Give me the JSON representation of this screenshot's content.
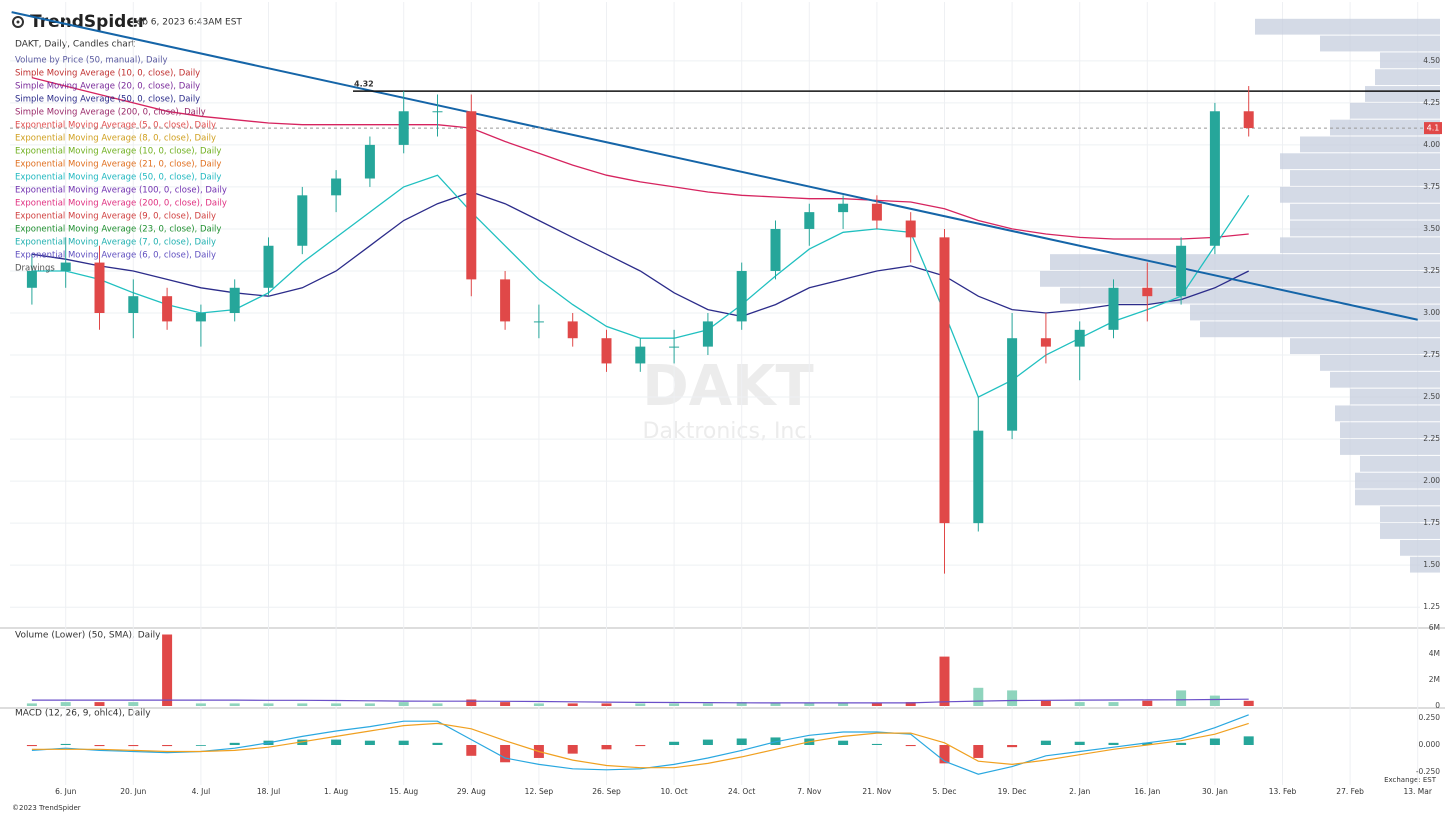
{
  "header": {
    "brand": "TrendSpider",
    "timestamp": "Feb 6, 2023 6:43AM EST",
    "copyright": "©2023 TrendSpider",
    "exchange": "Exchange: EST",
    "watermark": "DAKT",
    "watermark_sub": "Daktronics, Inc."
  },
  "chart_data": [
    {
      "type": "candlestick",
      "title": "DAKT, Daily, Candles chart",
      "categories": [
        null,
        "6. Jun",
        null,
        "20. Jun",
        null,
        "4. Jul",
        null,
        "18. Jul",
        null,
        "1. Aug",
        null,
        "15. Aug",
        null,
        "29. Aug",
        null,
        "12. Sep",
        null,
        "26. Sep",
        null,
        "10. Oct",
        null,
        "24. Oct",
        null,
        "7. Nov",
        null,
        "21. Nov",
        null,
        "5. Dec",
        null,
        "19. Dec",
        null,
        "2. Jan",
        null,
        "16. Jan",
        null,
        "30. Jan",
        null,
        "13. Feb",
        null,
        "27. Feb",
        null,
        "13. Mar"
      ],
      "open": [
        3.15,
        3.25,
        3.3,
        3.0,
        3.1,
        2.95,
        3.0,
        3.15,
        3.4,
        3.7,
        3.8,
        4.0,
        4.2,
        4.2,
        3.2,
        2.95,
        2.95,
        2.85,
        2.7,
        2.8,
        2.8,
        2.95,
        3.25,
        3.5,
        3.6,
        3.65,
        3.55,
        3.45,
        1.75,
        2.3,
        2.85,
        2.8,
        2.9,
        3.15,
        3.1,
        3.4,
        4.2,
        null,
        null,
        null,
        null,
        null
      ],
      "high": [
        3.35,
        3.45,
        3.4,
        3.2,
        3.15,
        3.05,
        3.2,
        3.45,
        3.75,
        3.85,
        4.05,
        4.32,
        4.3,
        4.3,
        3.25,
        3.05,
        3.0,
        2.9,
        2.85,
        2.9,
        3.0,
        3.3,
        3.55,
        3.65,
        3.7,
        3.7,
        3.6,
        3.5,
        2.5,
        3.0,
        3.0,
        2.95,
        3.2,
        3.3,
        3.45,
        4.25,
        4.35,
        null,
        null,
        null,
        null,
        null
      ],
      "low": [
        3.05,
        3.15,
        2.9,
        2.85,
        2.9,
        2.8,
        2.95,
        3.1,
        3.35,
        3.6,
        3.75,
        3.95,
        4.05,
        3.1,
        2.9,
        2.85,
        2.8,
        2.65,
        2.65,
        2.7,
        2.75,
        2.9,
        3.2,
        3.4,
        3.5,
        3.5,
        3.3,
        1.45,
        1.7,
        2.25,
        2.7,
        2.6,
        2.85,
        2.95,
        3.05,
        3.35,
        4.05,
        null,
        null,
        null,
        null,
        null
      ],
      "close": [
        3.25,
        3.3,
        3.0,
        3.1,
        2.95,
        3.0,
        3.15,
        3.4,
        3.7,
        3.8,
        4.0,
        4.2,
        4.2,
        3.2,
        2.95,
        2.95,
        2.85,
        2.7,
        2.8,
        2.8,
        2.95,
        3.25,
        3.5,
        3.6,
        3.65,
        3.55,
        3.45,
        1.75,
        2.3,
        2.85,
        2.8,
        2.9,
        3.15,
        3.1,
        3.4,
        4.2,
        4.1,
        null,
        null,
        null,
        null,
        null
      ],
      "up_color": "#26a69a",
      "down_color": "#e04848",
      "lines": [
        {
          "color": "#d6245f",
          "values": [
            4.4,
            4.35,
            4.3,
            4.25,
            4.2,
            4.17,
            4.15,
            4.13,
            4.12,
            4.12,
            4.12,
            4.12,
            4.12,
            4.1,
            4.02,
            3.95,
            3.88,
            3.82,
            3.78,
            3.75,
            3.72,
            3.7,
            3.69,
            3.68,
            3.68,
            3.67,
            3.66,
            3.62,
            3.55,
            3.5,
            3.47,
            3.45,
            3.44,
            3.44,
            3.44,
            3.45,
            3.47,
            null,
            null,
            null,
            null,
            null
          ]
        },
        {
          "color": "#2c2c8a",
          "values": [
            3.35,
            3.32,
            3.28,
            3.25,
            3.2,
            3.15,
            3.12,
            3.1,
            3.15,
            3.25,
            3.4,
            3.55,
            3.65,
            3.72,
            3.65,
            3.55,
            3.45,
            3.35,
            3.25,
            3.12,
            3.02,
            2.98,
            3.05,
            3.15,
            3.2,
            3.25,
            3.28,
            3.22,
            3.1,
            3.02,
            3.0,
            3.02,
            3.05,
            3.05,
            3.08,
            3.15,
            3.25,
            null,
            null,
            null,
            null,
            null
          ]
        },
        {
          "color": "#20c0c0",
          "values": [
            3.25,
            3.25,
            3.2,
            3.12,
            3.05,
            3.0,
            3.02,
            3.12,
            3.3,
            3.45,
            3.6,
            3.75,
            3.82,
            3.6,
            3.4,
            3.2,
            3.05,
            2.92,
            2.85,
            2.85,
            2.9,
            3.05,
            3.22,
            3.38,
            3.48,
            3.5,
            3.48,
            3.0,
            2.5,
            2.6,
            2.75,
            2.85,
            2.95,
            3.02,
            3.1,
            3.4,
            3.7,
            null,
            null,
            null,
            null,
            null
          ]
        }
      ],
      "indicators": [
        {
          "name": "Volume by Price (50, manual), Daily",
          "color": "#5a5aa0"
        },
        {
          "name": "Simple Moving Average (10, 0, close), Daily",
          "color": "#c03030"
        },
        {
          "name": "Simple Moving Average (20, 0, close), Daily",
          "color": "#7a2a9a"
        },
        {
          "name": "Simple Moving Average (50, 0, close), Daily",
          "color": "#2c2c8a"
        },
        {
          "name": "Simple Moving Average (200, 0, close), Daily",
          "color": "#9a2a6a"
        },
        {
          "name": "Exponential Moving Average (5, 0, close), Daily",
          "color": "#e05050"
        },
        {
          "name": "Exponential Moving Average (8, 0, close), Daily",
          "color": "#d0a020"
        },
        {
          "name": "Exponential Moving Average (10, 0, close), Daily",
          "color": "#70b020"
        },
        {
          "name": "Exponential Moving Average (21, 0, close), Daily",
          "color": "#e07020"
        },
        {
          "name": "Exponential Moving Average (50, 0, close), Daily",
          "color": "#20b8c0"
        },
        {
          "name": "Exponential Moving Average (100, 0, close), Daily",
          "color": "#7030b0"
        },
        {
          "name": "Exponential Moving Average (200, 0, close), Daily",
          "color": "#e03080"
        },
        {
          "name": "Exponential Moving Average (9, 0, close), Daily",
          "color": "#d04040"
        },
        {
          "name": "Exponential Moving Average (23, 0, close), Daily",
          "color": "#209030"
        },
        {
          "name": "Exponential Moving Average (7, 0, close), Daily",
          "color": "#20b0b0"
        },
        {
          "name": "Exponential Moving Average (6, 0, close), Daily",
          "color": "#6050c0"
        },
        {
          "name": "Drawings",
          "color": "#555555"
        }
      ],
      "volume_profile": {
        "color": "#c5cedd",
        "prices": [
          1.5,
          1.6,
          1.7,
          1.8,
          1.9,
          2.0,
          2.1,
          2.2,
          2.3,
          2.4,
          2.5,
          2.6,
          2.7,
          2.8,
          2.9,
          3.0,
          3.1,
          3.2,
          3.3,
          3.4,
          3.5,
          3.6,
          3.7,
          3.8,
          3.9,
          4.0,
          4.1,
          4.2,
          4.3,
          4.4,
          4.5,
          4.6,
          4.7
        ],
        "volumes": [
          3,
          4,
          6,
          6,
          8.5,
          8.5,
          8,
          10,
          10,
          10.5,
          9,
          11,
          12,
          15,
          24,
          25,
          38,
          40,
          39,
          16,
          15,
          15,
          16,
          15,
          16,
          14,
          11,
          9,
          7.5,
          6.5,
          6,
          12,
          18.5
        ]
      },
      "trendline": {
        "color": "#1565a8",
        "x": [
          -0.6,
          41.0
        ],
        "y": [
          4.79,
          2.96
        ]
      },
      "level": {
        "value": 4.32,
        "label": "4.32",
        "start": 9.5
      },
      "last_price": {
        "value": 4.1,
        "label": "4.1",
        "color": "#e04848"
      },
      "ylim": [
        1.15,
        4.85
      ],
      "yticks": [
        {
          "value": 1.25,
          "label": "1.25"
        },
        {
          "value": 1.5,
          "label": "1.50"
        },
        {
          "value": 1.75,
          "label": "1.75"
        },
        {
          "value": 2,
          "label": "2.00"
        },
        {
          "value": 2.25,
          "label": "2.25"
        },
        {
          "value": 2.5,
          "label": "2.50"
        },
        {
          "value": 2.75,
          "label": "2.75"
        },
        {
          "value": 3,
          "label": "3.00"
        },
        {
          "value": 3.25,
          "label": "3.25"
        },
        {
          "value": 3.5,
          "label": "3.50"
        },
        {
          "value": 3.75,
          "label": "3.75"
        },
        {
          "value": 4,
          "label": "4.00"
        },
        {
          "value": 4.25,
          "label": "4.25"
        },
        {
          "value": 4.5,
          "label": "4.50"
        }
      ],
      "grid": true
    },
    {
      "type": "volume",
      "title": "Volume (Lower) (50, SMA), Daily",
      "values": [
        0.2,
        0.3,
        0.3,
        0.3,
        5.5,
        0.2,
        0.2,
        0.2,
        0.2,
        0.2,
        0.2,
        0.3,
        0.2,
        0.5,
        0.3,
        0.2,
        0.2,
        0.2,
        0.2,
        0.2,
        0.2,
        0.3,
        0.2,
        0.2,
        0.2,
        0.2,
        0.3,
        3.8,
        1.4,
        1.2,
        0.4,
        0.3,
        0.3,
        0.4,
        1.2,
        0.8,
        0.4,
        null,
        null,
        null,
        null,
        null
      ],
      "up_color": "#8fd4bd",
      "down_color": "#e04848",
      "sma": {
        "color": "#6a4fc8",
        "values": [
          0.45,
          0.45,
          0.45,
          0.45,
          0.45,
          0.45,
          0.45,
          0.44,
          0.44,
          0.42,
          0.4,
          0.38,
          0.37,
          0.37,
          0.36,
          0.35,
          0.32,
          0.3,
          0.28,
          0.27,
          0.26,
          0.25,
          0.24,
          0.24,
          0.24,
          0.24,
          0.24,
          0.32,
          0.38,
          0.42,
          0.44,
          0.45,
          0.46,
          0.47,
          0.48,
          0.5,
          0.52,
          null,
          null,
          null,
          null,
          null
        ]
      },
      "ylim": [
        0,
        6
      ],
      "yticks": [
        0,
        {
          "value": 2,
          "label": "2M"
        },
        {
          "value": 4,
          "label": "4M"
        },
        {
          "value": 6,
          "label": "6M"
        }
      ]
    },
    {
      "type": "macd",
      "title": "MACD (12, 26, 9, ohlc4), Daily",
      "histogram": {
        "pos_color": "#26a69a",
        "neg_color": "#e04848",
        "values": [
          -0.01,
          0.01,
          -0.01,
          -0.01,
          -0.01,
          0.0,
          0.02,
          0.04,
          0.05,
          0.05,
          0.04,
          0.04,
          0.02,
          -0.1,
          -0.16,
          -0.12,
          -0.08,
          -0.04,
          -0.01,
          0.03,
          0.05,
          0.06,
          0.07,
          0.06,
          0.04,
          0.01,
          -0.01,
          -0.17,
          -0.12,
          -0.02,
          0.04,
          0.03,
          0.02,
          0.02,
          0.02,
          0.06,
          0.08,
          null,
          null,
          null,
          null,
          null
        ]
      },
      "macd_line": {
        "color": "#2aa8e0",
        "values": [
          -0.05,
          -0.03,
          -0.05,
          -0.06,
          -0.07,
          -0.06,
          -0.03,
          0.02,
          0.08,
          0.13,
          0.17,
          0.22,
          0.22,
          0.05,
          -0.12,
          -0.18,
          -0.22,
          -0.23,
          -0.22,
          -0.18,
          -0.12,
          -0.05,
          0.03,
          0.09,
          0.12,
          0.12,
          0.1,
          -0.15,
          -0.27,
          -0.2,
          -0.1,
          -0.06,
          -0.02,
          0.02,
          0.06,
          0.16,
          0.28,
          null,
          null,
          null,
          null,
          null
        ]
      },
      "signal_line": {
        "color": "#f0a020",
        "values": [
          -0.04,
          -0.04,
          -0.04,
          -0.05,
          -0.06,
          -0.06,
          -0.05,
          -0.02,
          0.03,
          0.08,
          0.13,
          0.18,
          0.2,
          0.15,
          0.04,
          -0.06,
          -0.14,
          -0.19,
          -0.21,
          -0.21,
          -0.17,
          -0.11,
          -0.04,
          0.03,
          0.08,
          0.11,
          0.11,
          0.02,
          -0.15,
          -0.18,
          -0.14,
          -0.09,
          -0.04,
          0.0,
          0.04,
          0.1,
          0.2,
          null,
          null,
          null,
          null,
          null
        ]
      },
      "ylim": [
        -0.3,
        0.3
      ],
      "yticks": [
        {
          "value": -0.25,
          "label": "-0.250"
        },
        {
          "value": 0,
          "label": "0.000"
        },
        {
          "value": 0.25,
          "label": "0.250"
        }
      ]
    }
  ]
}
